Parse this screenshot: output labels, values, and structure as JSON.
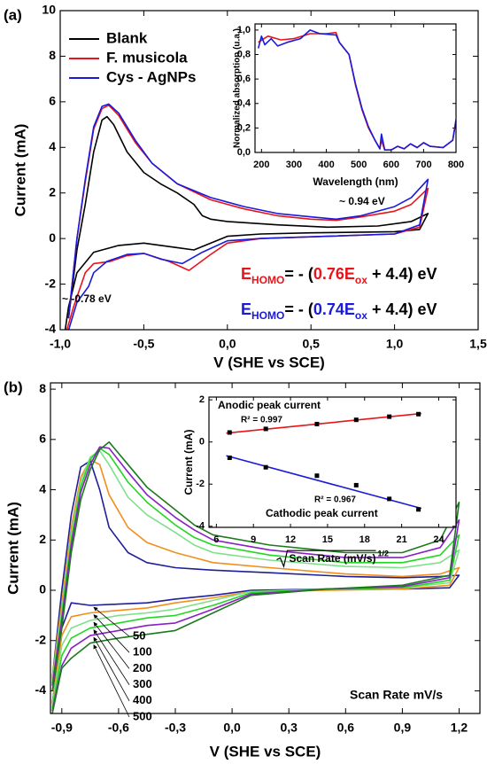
{
  "chart_data": [
    {
      "type": "line",
      "panel": "(a)",
      "xlabel": "V (SHE vs SCE)",
      "ylabel": "Current (mA)",
      "xlim": [
        -1.0,
        1.5
      ],
      "ylim": [
        -4,
        10
      ],
      "xticks": [
        {
          "value": -1.0,
          "label": "-1,0"
        },
        {
          "value": -0.5,
          "label": "-0,5"
        },
        {
          "value": 0,
          "label": "0,0"
        },
        {
          "value": 0.5,
          "label": "0,5"
        },
        {
          "value": 1.0,
          "label": "1,0"
        },
        {
          "value": 1.5,
          "label": "1,5"
        }
      ],
      "yticks": [
        -4,
        -2,
        0,
        2,
        4,
        6,
        8,
        10
      ],
      "legend": "upper left",
      "series": [
        {
          "name": "Blank",
          "color": "#000000",
          "x": [
            -0.95,
            -0.9,
            -0.85,
            -0.8,
            -0.75,
            -0.72,
            -0.68,
            -0.6,
            -0.5,
            -0.4,
            -0.3,
            -0.2,
            -0.15,
            -0.1,
            0,
            0.3,
            0.6,
            0.9,
            1.1,
            1.2,
            1.15,
            1.0,
            0.5,
            0.2,
            0,
            -0.2,
            -0.3,
            -0.5,
            -0.65,
            -0.8,
            -0.9,
            -0.95,
            -0.98
          ],
          "values": [
            -3.5,
            -0.5,
            1.5,
            3.8,
            5.2,
            5.35,
            5.0,
            3.8,
            2.9,
            2.4,
            2.0,
            1.5,
            1.0,
            0.85,
            0.75,
            0.6,
            0.5,
            0.55,
            0.75,
            1.1,
            0.4,
            0.3,
            0.25,
            0.2,
            0.1,
            -0.5,
            -0.4,
            -0.2,
            -0.3,
            -0.6,
            -1.5,
            -3,
            -4.5
          ]
        },
        {
          "name": "F. musicola",
          "color": "#e8141b",
          "x": [
            -0.95,
            -0.9,
            -0.85,
            -0.8,
            -0.75,
            -0.71,
            -0.65,
            -0.55,
            -0.45,
            -0.3,
            -0.1,
            0.1,
            0.3,
            0.5,
            0.65,
            0.8,
            1.0,
            1.1,
            1.2,
            1.15,
            1.0,
            0.6,
            0.2,
            0,
            -0.1,
            -0.23,
            -0.35,
            -0.5,
            -0.6,
            -0.7,
            -0.8,
            -0.85,
            -0.92,
            -0.98
          ],
          "values": [
            -3.5,
            0,
            2.5,
            4.8,
            5.7,
            5.85,
            5.4,
            4.2,
            3.3,
            2.4,
            1.7,
            1.3,
            1.0,
            0.85,
            0.8,
            0.95,
            1.2,
            1.5,
            2.2,
            0.5,
            0.2,
            0.1,
            0,
            -0.2,
            -0.7,
            -1.4,
            -1.0,
            -0.65,
            -0.75,
            -1.0,
            -1.1,
            -1.5,
            -3,
            -4.5
          ]
        },
        {
          "name": "Cys - AgNPs",
          "color": "#1a1adb",
          "x": [
            -0.95,
            -0.9,
            -0.85,
            -0.8,
            -0.75,
            -0.71,
            -0.65,
            -0.55,
            -0.45,
            -0.3,
            -0.1,
            0.1,
            0.3,
            0.5,
            0.65,
            0.8,
            1.0,
            1.1,
            1.2,
            1.15,
            1.0,
            0.6,
            0.2,
            0,
            -0.15,
            -0.27,
            -0.4,
            -0.5,
            -0.6,
            -0.72,
            -0.8,
            -0.83,
            -0.9,
            -0.97
          ],
          "values": [
            -3.5,
            0,
            2.6,
            4.9,
            5.8,
            5.9,
            5.5,
            4.3,
            3.3,
            2.4,
            1.8,
            1.4,
            1.1,
            0.95,
            0.85,
            1.0,
            1.4,
            1.8,
            2.6,
            0.6,
            0.2,
            0.1,
            0,
            -0.1,
            -0.6,
            -1.1,
            -0.9,
            -0.65,
            -0.7,
            -1.0,
            -1.5,
            -2.1,
            -2.8,
            -4.5
          ]
        }
      ],
      "annotations": [
        "~ 0.94 eV",
        "~ -0.78 eV"
      ],
      "equations": [
        {
          "parts": [
            "E",
            "HOMO",
            "= - (",
            "0.76E",
            "ox",
            " + 4.4) eV"
          ],
          "colors": [
            "#e8141b",
            "#e8141b",
            "#000000",
            "#e8141b",
            "#e8141b",
            "#000000"
          ],
          "sub": [
            false,
            true,
            false,
            false,
            true,
            false
          ]
        },
        {
          "parts": [
            "E",
            "HOMO",
            "= - (",
            "0.74E",
            "ox",
            " + 4.4) eV"
          ],
          "colors": [
            "#1a1adb",
            "#1a1adb",
            "#000000",
            "#1a1adb",
            "#1a1adb",
            "#000000"
          ],
          "sub": [
            false,
            true,
            false,
            false,
            true,
            false
          ]
        }
      ]
    },
    {
      "type": "line",
      "xlabel": "Wavelength (nm)",
      "ylabel": "Normalized absorption (u.a.)",
      "xlim": [
        180,
        800
      ],
      "ylim": [
        0,
        1.05
      ],
      "xticks": [
        200,
        300,
        400,
        500,
        600,
        700,
        800
      ],
      "yticks": [
        {
          "value": 0,
          "label": "0,0"
        },
        {
          "value": 0.2,
          "label": "0,2"
        },
        {
          "value": 0.4,
          "label": "0,4"
        },
        {
          "value": 0.6,
          "label": "0,6"
        },
        {
          "value": 0.8,
          "label": "0,8"
        },
        {
          "value": 1.0,
          "label": "1,0"
        }
      ],
      "series": [
        {
          "color": "#e8141b",
          "x": [
            190,
            220,
            260,
            300,
            350,
            400,
            430,
            440,
            470,
            490,
            510,
            530,
            550,
            565,
            570,
            580,
            600,
            620,
            640,
            660,
            680,
            700,
            720,
            760,
            790,
            800
          ],
          "values": [
            0.9,
            0.95,
            0.92,
            0.93,
            0.97,
            0.97,
            0.98,
            0.9,
            0.8,
            0.55,
            0.35,
            0.2,
            0.1,
            0.03,
            0.1,
            0.02,
            0.02,
            0.05,
            0.03,
            0.07,
            0.04,
            0.08,
            0.05,
            0.04,
            0.1,
            0.27
          ]
        },
        {
          "color": "#1a1adb",
          "x": [
            190,
            200,
            210,
            230,
            250,
            280,
            320,
            350,
            380,
            430,
            440,
            470,
            490,
            510,
            530,
            550,
            565,
            570,
            580,
            600,
            620,
            640,
            660,
            680,
            700,
            720,
            760,
            790,
            800
          ],
          "values": [
            0.85,
            0.95,
            0.88,
            0.93,
            0.87,
            0.9,
            0.93,
            1.0,
            0.97,
            0.96,
            0.9,
            0.8,
            0.56,
            0.36,
            0.21,
            0.1,
            0.03,
            0.15,
            0.02,
            0.02,
            0.05,
            0.03,
            0.07,
            0.04,
            0.08,
            0.05,
            0.04,
            0.1,
            0.26
          ]
        }
      ]
    },
    {
      "type": "line",
      "panel": "(b)",
      "xlabel": "V (SHE vs SCE)",
      "ylabel": "Current (mA)",
      "xlim": [
        -0.96,
        1.31
      ],
      "ylim": [
        -4.9,
        8.25
      ],
      "xticks": [
        {
          "value": -0.9,
          "label": "-0,9"
        },
        {
          "value": -0.6,
          "label": "-0,6"
        },
        {
          "value": -0.3,
          "label": "-0,3"
        },
        {
          "value": 0,
          "label": "0,0"
        },
        {
          "value": 0.3,
          "label": "0,3"
        },
        {
          "value": 0.6,
          "label": "0,6"
        },
        {
          "value": 0.9,
          "label": "0,9"
        },
        {
          "value": 1.2,
          "label": "1,2"
        }
      ],
      "yticks": [
        -4,
        -2,
        0,
        2,
        4,
        6,
        8
      ],
      "legend_title": "Scan Rate mV/s",
      "x": [
        -0.95,
        -0.9,
        -0.85,
        -0.8,
        -0.75,
        -0.7,
        -0.65,
        -0.55,
        -0.45,
        -0.3,
        -0.2,
        -0.1,
        0.2,
        0.6,
        0.9,
        1.1,
        1.2,
        1.15,
        0.9,
        0.5,
        0.1,
        -0.1,
        -0.3,
        -0.45,
        -0.6,
        -0.75,
        -0.85,
        -0.9,
        -0.95
      ],
      "series": [
        {
          "name": "50",
          "color": "#1f1f9a",
          "values": [
            -3.5,
            0,
            3,
            4.9,
            5.15,
            4,
            2.5,
            1.5,
            1.1,
            0.9,
            0.85,
            0.8,
            0.7,
            0.55,
            0.5,
            0.55,
            0.6,
            0.1,
            0.05,
            0.05,
            0,
            -0.2,
            -0.35,
            -0.5,
            -0.55,
            -0.6,
            -0.5,
            -1.5,
            -4.5
          ]
        },
        {
          "name": "100",
          "color": "#f28e1c",
          "values": [
            -3.5,
            -0.5,
            2.5,
            4.5,
            5.2,
            5.0,
            3.8,
            2.5,
            1.9,
            1.5,
            1.3,
            1.1,
            0.9,
            0.65,
            0.55,
            0.65,
            0.9,
            0.2,
            0.05,
            0.0,
            -0.05,
            -0.3,
            -0.5,
            -0.7,
            -0.8,
            -0.9,
            -1.05,
            -1.8,
            -4.5
          ]
        },
        {
          "name": "200",
          "color": "#7fe08a",
          "values": [
            -3.6,
            -0.8,
            2.2,
            4.3,
            5.3,
            5.55,
            5.0,
            3.7,
            3.0,
            2.3,
            1.8,
            1.5,
            1.2,
            0.95,
            0.9,
            1.1,
            1.6,
            0.3,
            0.1,
            0.05,
            -0.05,
            -0.4,
            -0.75,
            -0.9,
            -1.0,
            -1.2,
            -1.5,
            -2.2,
            -4.6
          ]
        },
        {
          "name": "300",
          "color": "#22d822",
          "values": [
            -3.7,
            -1.0,
            2.0,
            4.1,
            5.2,
            5.65,
            5.4,
            4.3,
            3.5,
            2.6,
            2.1,
            1.8,
            1.4,
            1.1,
            1.1,
            1.4,
            2.2,
            0.4,
            0.1,
            0.05,
            -0.1,
            -0.6,
            -1.0,
            -1.1,
            -1.3,
            -1.5,
            -1.9,
            -2.6,
            -4.7
          ]
        },
        {
          "name": "400",
          "color": "#8a1fc4",
          "values": [
            -3.8,
            -1.2,
            1.8,
            3.9,
            5.0,
            5.7,
            5.65,
            4.7,
            3.8,
            2.9,
            2.4,
            2.0,
            1.6,
            1.3,
            1.3,
            1.7,
            2.8,
            0.5,
            0.15,
            0.05,
            -0.15,
            -0.75,
            -1.3,
            -1.4,
            -1.6,
            -1.8,
            -2.3,
            -3.0,
            -4.8
          ]
        },
        {
          "name": "500",
          "color": "#1b7a1b",
          "values": [
            -4.0,
            -1.5,
            1.5,
            3.6,
            4.8,
            5.6,
            5.9,
            5.0,
            4.1,
            3.2,
            2.6,
            2.2,
            1.8,
            1.5,
            1.5,
            2.0,
            3.5,
            0.6,
            0.2,
            0.05,
            -0.2,
            -0.9,
            -1.6,
            -1.75,
            -1.9,
            -2.1,
            -2.7,
            -3.1,
            -4.9
          ]
        }
      ]
    },
    {
      "type": "scatter",
      "xlabel": "Scan Rate (mV/s)",
      "xlabel_exponent": "1/2",
      "ylabel": "Current (mA)",
      "xlim": [
        5.4,
        25.4
      ],
      "ylim": [
        -4.05,
        2.13
      ],
      "xticks": [
        6,
        9,
        12,
        15,
        18,
        21,
        24
      ],
      "yticks": [
        -4,
        -2,
        0,
        2
      ],
      "series": [
        {
          "name": "Anodic peak current",
          "color": "#000000",
          "fit_color": "#e8141b",
          "r2": "R² = 0.997",
          "x": [
            7.07,
            10,
            14.14,
            17.32,
            20,
            22.36
          ],
          "values": [
            0.45,
            0.62,
            0.85,
            1.05,
            1.2,
            1.32
          ],
          "fit_x": [
            6.8,
            22.6
          ],
          "fit_values": [
            0.42,
            1.35
          ]
        },
        {
          "name": "Cathodic peak current",
          "color": "#000000",
          "fit_color": "#1a1adb",
          "r2": "R² = 0.967",
          "x": [
            7.07,
            10,
            14.14,
            17.32,
            20,
            22.36
          ],
          "values": [
            -0.75,
            -1.2,
            -1.6,
            -2.05,
            -2.7,
            -3.2
          ],
          "fit_x": [
            6.8,
            22.6
          ],
          "fit_values": [
            -0.65,
            -3.15
          ]
        }
      ]
    }
  ]
}
